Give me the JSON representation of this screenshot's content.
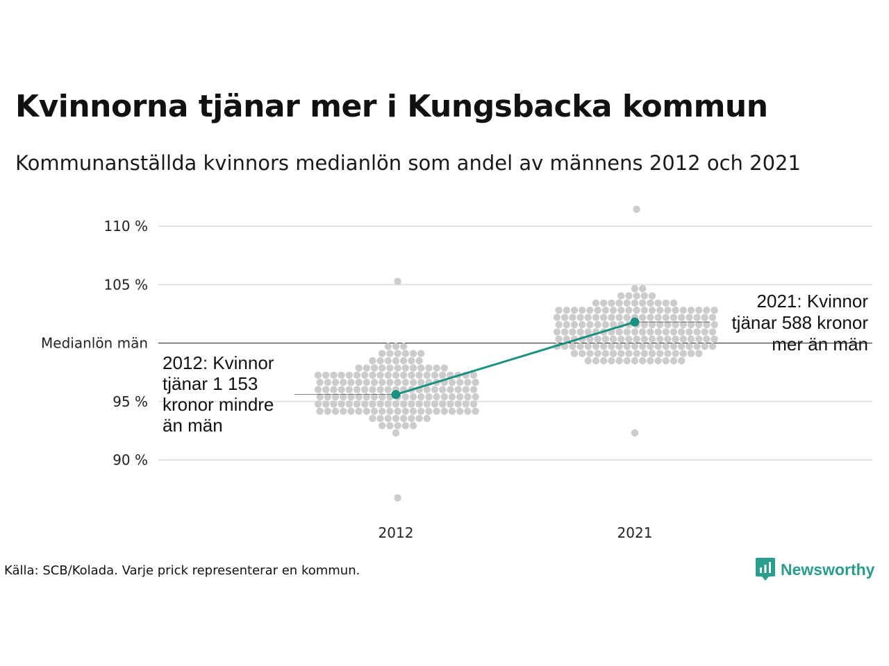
{
  "title": "Kvinnorna tjänar mer i Kungsbacka kommun",
  "subtitle": "Kommunanställda kvinnors medianlön som andel av männens 2012 och 2021",
  "source": "Källa: SCB/Kolada. Varje prick representerar en kommun.",
  "brand": {
    "name": "Newsworthy",
    "icon": "newsworthy-logo-icon",
    "color": "#2a9d8f"
  },
  "colors": {
    "dots": "#cccccc",
    "highlight": "#1a9080",
    "grid": "#e3e3e3",
    "reference": "#222222"
  },
  "chart_data": {
    "type": "scatter",
    "subtype": "beeswarm",
    "x_categories": [
      "2012",
      "2021"
    ],
    "y_ticks": [
      {
        "value": 90,
        "label": "90 %"
      },
      {
        "value": 95,
        "label": "95 %"
      },
      {
        "value": 100,
        "label": "Medianlön män"
      },
      {
        "value": 105,
        "label": "105 %"
      },
      {
        "value": 110,
        "label": "110 %"
      }
    ],
    "ylim": [
      86,
      111.5
    ],
    "grid": true,
    "reference_line": {
      "value": 100,
      "label": "Medianlön män"
    },
    "highlight": {
      "name": "Kungsbacka",
      "points": [
        {
          "x": "2012",
          "y": 95.6
        },
        {
          "x": "2021",
          "y": 101.8
        }
      ]
    },
    "annotations": [
      {
        "x": "2012",
        "y": 95.6,
        "lines": [
          "2012: Kvinnor",
          "tjänar 1 153",
          "kronor mindre",
          "än män"
        ]
      },
      {
        "x": "2021",
        "y": 101.8,
        "lines": [
          "2021: Kvinnor",
          "tjänar 588 kronor",
          "mer än män"
        ]
      }
    ],
    "distributions": [
      {
        "x": "2012",
        "min": 86.5,
        "max": 105.2,
        "peak": 96.0,
        "count": 290
      },
      {
        "x": "2021",
        "min": 92.5,
        "max": 111.3,
        "peak": 101.0,
        "count": 290
      }
    ]
  }
}
